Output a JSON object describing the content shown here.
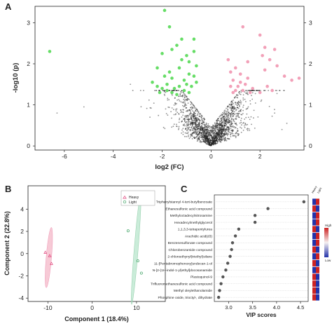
{
  "panels": {
    "A": {
      "letter": "A"
    },
    "B": {
      "letter": "B"
    },
    "C": {
      "letter": "C"
    }
  },
  "colors": {
    "up": "#f2a0b8",
    "down": "#66dd66",
    "ns": "#222222",
    "heavy_fill": "#f4b8c8",
    "heavy_point": "#e0407a",
    "light_fill": "#b8e6cc",
    "light_point": "#3aa060",
    "heat_high": "#cc2222",
    "heat_low": "#2233aa"
  },
  "chart_data": [
    {
      "panel": "A",
      "type": "scatter",
      "title": "",
      "xlabel": "log2 (FC)",
      "ylabel": "-log10 (p)",
      "xlim": [
        -7.2,
        3.8
      ],
      "ylim": [
        -0.1,
        3.4
      ],
      "xticks": [
        -6,
        -4,
        -2,
        0,
        2
      ],
      "yticks": [
        0,
        1,
        2,
        3
      ],
      "grid": false,
      "series": [
        {
          "group": "down",
          "points": [
            [
              -6.6,
              2.3
            ],
            [
              -1.9,
              3.3
            ],
            [
              -1.7,
              2.9
            ],
            [
              -2.0,
              2.25
            ],
            [
              -1.6,
              2.35
            ],
            [
              -1.4,
              2.45
            ],
            [
              -0.7,
              2.6
            ],
            [
              -0.7,
              2.3
            ],
            [
              -0.9,
              2.05
            ],
            [
              -1.2,
              2.1
            ],
            [
              -1.0,
              2.2
            ],
            [
              -2.2,
              1.9
            ],
            [
              -1.9,
              1.7
            ],
            [
              -1.7,
              1.8
            ],
            [
              -1.6,
              1.65
            ],
            [
              -1.3,
              1.9
            ],
            [
              -1.1,
              1.6
            ],
            [
              -0.9,
              1.75
            ],
            [
              -0.7,
              1.7
            ],
            [
              -0.6,
              1.95
            ],
            [
              -2.4,
              1.55
            ],
            [
              -2.2,
              1.45
            ],
            [
              -2.0,
              1.4
            ],
            [
              -1.8,
              1.5
            ],
            [
              -1.5,
              1.4
            ],
            [
              -1.3,
              1.45
            ],
            [
              -1.1,
              1.35
            ],
            [
              -1.8,
              1.35
            ],
            [
              -1.0,
              1.5
            ],
            [
              -0.8,
              1.45
            ],
            [
              -0.6,
              1.55
            ],
            [
              -1.6,
              1.3
            ],
            [
              -1.4,
              1.25
            ],
            [
              -2.1,
              1.3
            ],
            [
              -0.9,
              1.3
            ],
            [
              -1.2,
              2.6
            ]
          ]
        },
        {
          "group": "up",
          "points": [
            [
              1.3,
              2.9
            ],
            [
              2.0,
              2.7
            ],
            [
              2.2,
              2.4
            ],
            [
              2.1,
              2.2
            ],
            [
              2.6,
              2.35
            ],
            [
              2.4,
              2.1
            ],
            [
              2.2,
              1.85
            ],
            [
              2.7,
              1.95
            ],
            [
              3.0,
              1.7
            ],
            [
              3.6,
              1.65
            ],
            [
              1.5,
              2.05
            ],
            [
              0.7,
              2.1
            ],
            [
              1.0,
              1.9
            ],
            [
              0.8,
              1.8
            ],
            [
              1.2,
              1.75
            ],
            [
              0.9,
              1.6
            ],
            [
              1.5,
              1.65
            ],
            [
              1.4,
              1.5
            ],
            [
              1.1,
              1.45
            ],
            [
              0.8,
              1.45
            ],
            [
              1.7,
              1.4
            ],
            [
              1.3,
              1.35
            ],
            [
              1.0,
              1.35
            ],
            [
              2.3,
              1.45
            ],
            [
              2.0,
              1.3
            ],
            [
              2.5,
              1.35
            ],
            [
              1.6,
              1.3
            ],
            [
              0.9,
              1.3
            ],
            [
              3.3,
              1.6
            ],
            [
              1.2,
              1.55
            ]
          ]
        },
        {
          "group": "ns",
          "generated": true,
          "count": 1900
        }
      ]
    },
    {
      "panel": "B",
      "type": "scatter",
      "title": "",
      "xlabel": "Component 1 (18.4%)",
      "ylabel": "Component 2 (22.8%)",
      "xlim": [
        -14.5,
        16.5
      ],
      "ylim": [
        -4.3,
        6.1
      ],
      "xticks": [
        -10,
        0,
        10
      ],
      "yticks": [
        -4,
        -2,
        0,
        2,
        4
      ],
      "legend_position": "top-right",
      "series": [
        {
          "name": "Heavy",
          "marker": "triangle",
          "points": [
            [
              -10.6,
              0.1
            ],
            [
              -9.6,
              -0.2
            ],
            [
              -9.2,
              -0.9
            ]
          ],
          "ellipse": {
            "cx": -9.8,
            "cy": -0.35,
            "rx": 3.3,
            "ry": 1.3,
            "rotation": -60
          }
        },
        {
          "name": "Light",
          "marker": "circle",
          "points": [
            [
              8.1,
              2.05
            ],
            [
              10.3,
              -0.65
            ],
            [
              11.1,
              -1.75
            ]
          ],
          "ellipse": {
            "cx": 9.9,
            "cy": 0.3,
            "rx": 5.8,
            "ry": 1.0,
            "rotation": -65
          }
        }
      ]
    },
    {
      "panel": "C",
      "type": "dot",
      "title": "",
      "xlabel": "VIP scores",
      "xlim": [
        2.7,
        4.66
      ],
      "xticks": [
        3.0,
        3.5,
        4.0,
        4.5
      ],
      "xticklabels": [
        "3.0",
        "3.5",
        "4.0",
        "4.5"
      ],
      "categories": [
        "Triphenylstannyl 4-tert-butylbenzoate",
        "Ethanesulfonic acid compound",
        "Methyloctadecylnitrosamine",
        "Hexadecylmethylglycerol",
        "1,1,3,3-tetrapentylurea",
        "Arachidic acid(d3)",
        "Benzenesulfonate compound",
        "Chlorobenzamide compound",
        "2-chloroethynyl(triethyl)silane",
        "11-[Pentabromophenoxy]undecan-1-ol",
        "N-[2-(1H-indol-1-yl)ethyl]docosanamide",
        "Plastoquinol-9",
        "Trifluoromethanesulfonic acid compound",
        "Methyl oleylethanolamide",
        "Phosphine oxide, trioctyl-, dihydrate"
      ],
      "values": [
        4.57,
        3.82,
        3.55,
        3.55,
        3.21,
        3.14,
        3.08,
        3.06,
        3.03,
        2.98,
        2.94,
        2.88,
        2.84,
        2.81,
        2.79
      ],
      "heatmap": {
        "columns": [
          "Heavy",
          "Light"
        ],
        "cells": [
          [
            0,
            1
          ],
          [
            1,
            0
          ],
          [
            0,
            1
          ],
          [
            0,
            1
          ],
          [
            1,
            0
          ],
          [
            0,
            1
          ],
          [
            0,
            1
          ],
          [
            1,
            0
          ],
          [
            0,
            1
          ],
          [
            1,
            0
          ],
          [
            0,
            1
          ],
          [
            1,
            0
          ],
          [
            1,
            0
          ],
          [
            1,
            0
          ],
          [
            1,
            0
          ]
        ]
      },
      "colorbar": {
        "high_label": "High",
        "low_label": "Low"
      }
    }
  ]
}
